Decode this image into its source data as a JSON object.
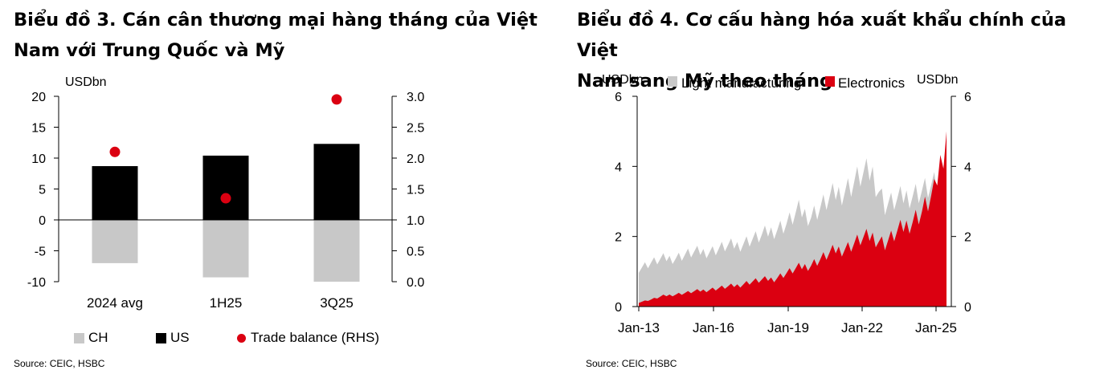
{
  "charts": [
    {
      "title_line1": "Biểu đồ 3. Cán cân thương mại hàng tháng của Việt",
      "title_line2": "Nam với Trung Quốc và Mỹ",
      "source": "Source: CEIC, HSBC"
    },
    {
      "title_line1": "Biểu đồ 4. Cơ cấu hàng hóa xuất khẩu chính của Việt",
      "title_line2": "Nam sang Mỹ theo tháng",
      "source": "Source: CEIC, HSBC"
    }
  ],
  "chart_data": [
    {
      "type": "bar",
      "unit_label": "USDbn",
      "categories": [
        "2024 avg",
        "1H25",
        "3Q25"
      ],
      "series": [
        {
          "name": "CH",
          "values": [
            -7.0,
            -9.3,
            -10.0
          ],
          "color": "#c8c8c8"
        },
        {
          "name": "US",
          "values": [
            8.7,
            10.4,
            12.3
          ],
          "color": "#000000"
        },
        {
          "name": "Trade balance (RHS)",
          "values": [
            2.1,
            1.35,
            2.95
          ],
          "color": "#db0011",
          "axis": "right",
          "type": "scatter"
        }
      ],
      "ylim": [
        -10,
        20
      ],
      "yticks": [
        "20",
        "15",
        "10",
        "5",
        "0",
        "-5",
        "-10"
      ],
      "y2lim": [
        0,
        3
      ],
      "y2ticks": [
        "3.0",
        "2.5",
        "2.0",
        "1.5",
        "1.0",
        "0.5",
        "0.0"
      ],
      "legend_position": "bottom"
    },
    {
      "type": "area",
      "unit_label_left": "USDbn",
      "unit_label_right": "USDbn",
      "x_tick_labels": [
        "Jan-13",
        "Jan-16",
        "Jan-19",
        "Jan-22",
        "Jan-25"
      ],
      "ylim": [
        0,
        6
      ],
      "yticks": [
        "6",
        "4",
        "2",
        "0"
      ],
      "y2ticks": [
        "6",
        "4",
        "2",
        "0"
      ],
      "series": [
        {
          "name": "Light manufacturing",
          "color": "#c8c8c8",
          "x": [
            "Jan-13",
            "Jul-13",
            "Jan-14",
            "Jul-14",
            "Jan-15",
            "Jul-15",
            "Jan-16",
            "Jul-16",
            "Jan-17",
            "Jul-17",
            "Jan-18",
            "Jul-18",
            "Jan-19",
            "Jul-19",
            "Jan-20",
            "Jul-20",
            "Jan-21",
            "Jul-21",
            "Jan-22",
            "Jul-22",
            "Jan-23",
            "Jul-23",
            "Jan-24",
            "Jul-24",
            "Jan-25",
            "Jul-25"
          ],
          "values": [
            1.1,
            1.25,
            1.35,
            1.4,
            1.5,
            1.55,
            1.6,
            1.7,
            1.75,
            1.9,
            2.0,
            2.2,
            2.35,
            2.7,
            2.6,
            2.9,
            3.2,
            3.4,
            3.7,
            3.8,
            2.9,
            3.0,
            3.2,
            3.3,
            3.4,
            3.3
          ]
        },
        {
          "name": "Electronics",
          "color": "#db0011",
          "x": [
            "Jan-13",
            "Jul-13",
            "Jan-14",
            "Jul-14",
            "Jan-15",
            "Jul-15",
            "Jan-16",
            "Jul-16",
            "Jan-17",
            "Jul-17",
            "Jan-18",
            "Jul-18",
            "Jan-19",
            "Jul-19",
            "Jan-20",
            "Jul-20",
            "Jan-21",
            "Jul-21",
            "Jan-22",
            "Jul-22",
            "Jan-23",
            "Jul-23",
            "Jan-24",
            "Jul-24",
            "Jan-25",
            "Jul-25"
          ],
          "values": [
            0.12,
            0.2,
            0.3,
            0.35,
            0.4,
            0.45,
            0.5,
            0.55,
            0.6,
            0.7,
            0.75,
            0.8,
            0.95,
            1.1,
            1.2,
            1.4,
            1.6,
            1.7,
            1.9,
            2.0,
            1.8,
            2.1,
            2.4,
            2.7,
            3.2,
            5.0
          ]
        }
      ],
      "legend_position": "top"
    }
  ]
}
